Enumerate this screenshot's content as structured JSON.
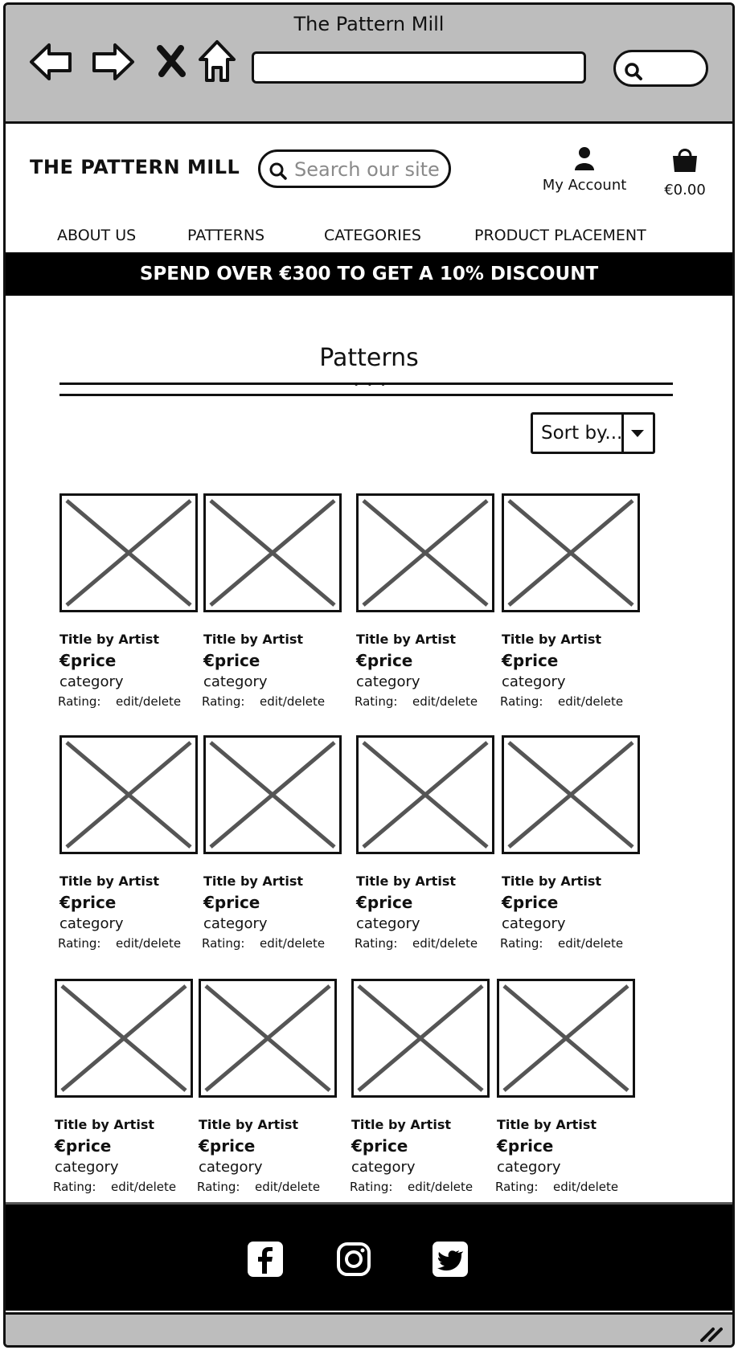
{
  "browser": {
    "title": "The Pattern Mill"
  },
  "header": {
    "logo": "THE PATTERN MILL",
    "search_placeholder": "Search our site",
    "account_label": "My Account",
    "cart_total": "€0.00"
  },
  "nav": [
    "ABOUT US",
    "PATTERNS",
    "CATEGORIES",
    "PRODUCT PLACEMENT"
  ],
  "promo": "SPEND OVER €300 TO GET A 10% DISCOUNT",
  "page": {
    "title": "Patterns",
    "sort_label": "Sort by..."
  },
  "products": [
    {
      "title": "Title by Artist",
      "price": "€price",
      "category": "category",
      "rating_label": "Rating:",
      "action": "edit/delete"
    },
    {
      "title": "Title by Artist",
      "price": "€price",
      "category": "category",
      "rating_label": "Rating:",
      "action": "edit/delete"
    },
    {
      "title": "Title by Artist",
      "price": "€price",
      "category": "category",
      "rating_label": "Rating:",
      "action": "edit/delete"
    },
    {
      "title": "Title by Artist",
      "price": "€price",
      "category": "category",
      "rating_label": "Rating:",
      "action": "edit/delete"
    },
    {
      "title": "Title by Artist",
      "price": "€price",
      "category": "category",
      "rating_label": "Rating:",
      "action": "edit/delete"
    },
    {
      "title": "Title by Artist",
      "price": "€price",
      "category": "category",
      "rating_label": "Rating:",
      "action": "edit/delete"
    },
    {
      "title": "Title by Artist",
      "price": "€price",
      "category": "category",
      "rating_label": "Rating:",
      "action": "edit/delete"
    },
    {
      "title": "Title by Artist",
      "price": "€price",
      "category": "category",
      "rating_label": "Rating:",
      "action": "edit/delete"
    },
    {
      "title": "Title by Artist",
      "price": "€price",
      "category": "category",
      "rating_label": "Rating:",
      "action": "edit/delete"
    },
    {
      "title": "Title by Artist",
      "price": "€price",
      "category": "category",
      "rating_label": "Rating:",
      "action": "edit/delete"
    },
    {
      "title": "Title by Artist",
      "price": "€price",
      "category": "category",
      "rating_label": "Rating:",
      "action": "edit/delete"
    },
    {
      "title": "Title by Artist",
      "price": "€price",
      "category": "category",
      "rating_label": "Rating:",
      "action": "edit/delete"
    }
  ],
  "footer": {
    "social_icons": [
      "facebook-icon",
      "instagram-icon",
      "twitter-icon"
    ]
  }
}
